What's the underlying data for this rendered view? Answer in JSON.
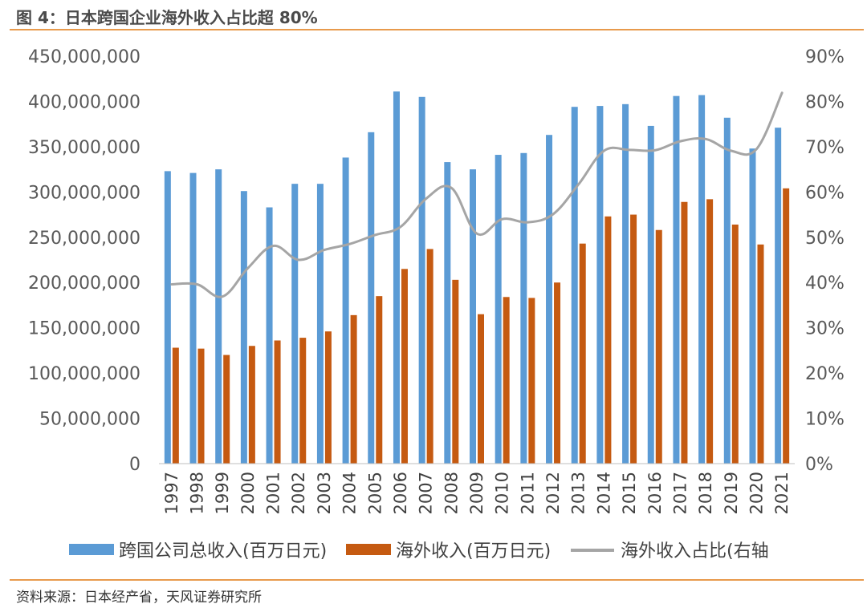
{
  "header": {
    "title": "图 4：日本跨国企业海外收入占比超 80%"
  },
  "footer": {
    "source": "资料来源：日本经产省，天风证券研究所"
  },
  "colors": {
    "bar_total": "#5b9bd5",
    "bar_overseas": "#c55a11",
    "line_ratio": "#a5a5a5",
    "accent_rule": "#e89a4c"
  },
  "chart_data": {
    "type": "bar",
    "categories": [
      "1997",
      "1998",
      "1999",
      "2000",
      "2001",
      "2002",
      "2003",
      "2004",
      "2005",
      "2006",
      "2007",
      "2008",
      "2009",
      "2010",
      "2011",
      "2012",
      "2013",
      "2014",
      "2015",
      "2016",
      "2017",
      "2018",
      "2019",
      "2020",
      "2021"
    ],
    "series": [
      {
        "name": "跨国公司总收入(百万日元)",
        "type": "bar",
        "axis": "left",
        "values": [
          323000000,
          321000000,
          325000000,
          301000000,
          283000000,
          309000000,
          309000000,
          338000000,
          366000000,
          411000000,
          405000000,
          333000000,
          325000000,
          341000000,
          343000000,
          363000000,
          394000000,
          395000000,
          397000000,
          373000000,
          406000000,
          407000000,
          382000000,
          348000000,
          371000000
        ]
      },
      {
        "name": "海外收入(百万日元)",
        "type": "bar",
        "axis": "left",
        "values": [
          128000000,
          127000000,
          120000000,
          130000000,
          136000000,
          139000000,
          146000000,
          164000000,
          185000000,
          215000000,
          237000000,
          203000000,
          165000000,
          184000000,
          183000000,
          200000000,
          243000000,
          273000000,
          275000000,
          258000000,
          289000000,
          292000000,
          264000000,
          242000000,
          304000000
        ]
      },
      {
        "name": "海外收入占比(右轴",
        "type": "line",
        "axis": "right",
        "values": [
          39.6,
          39.6,
          36.9,
          43.2,
          48.1,
          45.0,
          47.2,
          48.5,
          50.5,
          52.3,
          58.5,
          60.9,
          50.8,
          54.0,
          53.3,
          55.1,
          61.7,
          69.1,
          69.3,
          69.2,
          71.2,
          71.7,
          69.1,
          69.5,
          81.9
        ]
      }
    ],
    "y_left": {
      "min": 0,
      "max": 450000000,
      "step": 50000000,
      "tick_labels": [
        "0",
        "50,000,000",
        "100,000,000",
        "150,000,000",
        "200,000,000",
        "250,000,000",
        "300,000,000",
        "350,000,000",
        "400,000,000",
        "450,000,000"
      ]
    },
    "y_right": {
      "min": 0,
      "max": 90,
      "step": 10,
      "tick_labels": [
        "0%",
        "10%",
        "20%",
        "30%",
        "40%",
        "50%",
        "60%",
        "70%",
        "80%",
        "90%"
      ]
    },
    "grid": false,
    "legend_position": "bottom"
  }
}
